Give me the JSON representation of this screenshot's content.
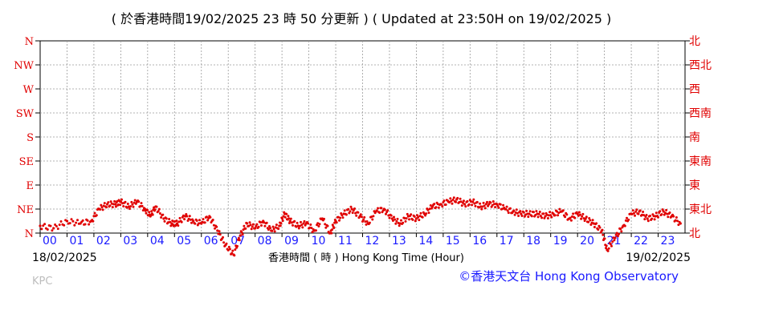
{
  "header": {
    "title": "( 於香港時間19/02/2025 23 時 50 分更新 ) ( Updated at 23:50H on 19/02/2025 )"
  },
  "footer": {
    "station": "KPC",
    "credit": "©香港天文台 Hong Kong Observatory"
  },
  "chart_data": {
    "type": "scatter",
    "title": "( 於香港時間19/02/2025 23 時 50 分更新 ) ( Updated at 23:50H on 19/02/2025 )",
    "xlabel": "香港時間 ( 時 )  Hong Kong Time (Hour)",
    "ylabel": "",
    "start_date_label": "18/02/2025",
    "end_date_label": "19/02/2025",
    "x_tick_labels": [
      "00",
      "01",
      "02",
      "03",
      "04",
      "05",
      "06",
      "07",
      "08",
      "09",
      "10",
      "11",
      "12",
      "13",
      "14",
      "15",
      "16",
      "17",
      "18",
      "19",
      "20",
      "21",
      "22",
      "23"
    ],
    "xlim": [
      0,
      24
    ],
    "y_tick_labels_left": [
      "N",
      "NW",
      "W",
      "SW",
      "S",
      "SE",
      "E",
      "NE",
      "N"
    ],
    "y_tick_labels_right": [
      "北",
      "西北",
      "西",
      "西南",
      "南",
      "東南",
      "東",
      "東北",
      "北"
    ],
    "ylim_compass_points": [
      0,
      8
    ],
    "grid": true,
    "marker_color": "#e00000",
    "series": [
      {
        "x": [
          0.0,
          0.5,
          1.0,
          1.5,
          1.9,
          2.2,
          2.5,
          2.8,
          3.0,
          3.3,
          3.6,
          3.9,
          4.1,
          4.3,
          4.6,
          4.9,
          5.1,
          5.4,
          5.7,
          6.0,
          6.3,
          6.6,
          6.9,
          7.2,
          7.45,
          7.7,
          8.0,
          8.3,
          8.6,
          8.9,
          9.1,
          9.3,
          9.6,
          9.9,
          10.2,
          10.5,
          10.8,
          11.0,
          11.3,
          11.6,
          11.9,
          12.2,
          12.5,
          12.8,
          13.1,
          13.4,
          13.7,
          14.0,
          14.3,
          14.6,
          14.9,
          15.2,
          15.5,
          15.8,
          16.1,
          16.4,
          16.7,
          17.0,
          17.3,
          17.6,
          17.9,
          18.2,
          18.5,
          18.8,
          19.1,
          19.4,
          19.7,
          20.0,
          20.3,
          20.6,
          20.9,
          21.1,
          21.4,
          21.7,
          22.0,
          22.3,
          22.6,
          22.9,
          23.2,
          23.5,
          23.83
        ],
        "y": [
          7.7,
          7.8,
          7.5,
          7.6,
          7.5,
          7.0,
          6.8,
          6.8,
          6.7,
          6.9,
          6.7,
          7.0,
          7.3,
          6.9,
          7.4,
          7.6,
          7.6,
          7.3,
          7.5,
          7.6,
          7.3,
          7.9,
          8.5,
          8.9,
          8.1,
          7.6,
          7.8,
          7.5,
          7.9,
          7.7,
          7.2,
          7.5,
          7.7,
          7.6,
          7.9,
          7.4,
          8.0,
          7.5,
          7.2,
          7.0,
          7.3,
          7.6,
          7.1,
          7.0,
          7.4,
          7.6,
          7.3,
          7.4,
          7.2,
          6.9,
          6.8,
          6.7,
          6.6,
          6.8,
          6.7,
          6.9,
          6.8,
          6.8,
          7.0,
          7.1,
          7.2,
          7.2,
          7.2,
          7.3,
          7.2,
          7.1,
          7.4,
          7.2,
          7.4,
          7.6,
          7.9,
          8.7,
          8.2,
          7.7,
          7.2,
          7.1,
          7.4,
          7.3,
          7.1,
          7.3,
          7.6
        ]
      }
    ]
  }
}
